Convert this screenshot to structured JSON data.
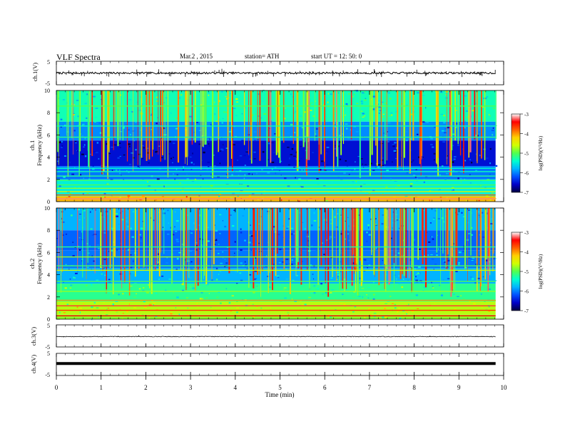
{
  "header": {
    "title": "VLF  Spectra",
    "date": "Mar.2  , 2015",
    "station": "station= ATH",
    "start": "start  UT  =    12: 50: 0"
  },
  "x_axis": {
    "label": "Time  (min)",
    "ticks": [
      "0",
      "1",
      "2",
      "3",
      "4",
      "5",
      "6",
      "7",
      "8",
      "9",
      "10"
    ],
    "range": [
      0,
      10
    ],
    "data_end": 9.82
  },
  "colormap_stops": [
    "#000040",
    "#0000c8",
    "#0050ff",
    "#00b4ff",
    "#00ffd0",
    "#50ff50",
    "#d0ff00",
    "#ffd000",
    "#ff6000",
    "#ff0000",
    "#ffffff"
  ],
  "chart_data": [
    {
      "type": "line",
      "id": "ch1",
      "ylabel": "ch.1(V)",
      "y_ticks": [
        "5",
        "-5"
      ],
      "ylim": [
        -5,
        5
      ],
      "baseline": 0,
      "noise_amplitude": 0.4,
      "spike_count": 60,
      "spike_amplitude": 1.8,
      "trace_width": 1.0
    },
    {
      "type": "heatmap",
      "id": "ch1-spectrogram",
      "ylabel_lines": [
        "ch.1",
        "Frequency  (kHz)"
      ],
      "y_ticks": [
        "0",
        "2",
        "4",
        "6",
        "8",
        "10"
      ],
      "ylim": [
        0,
        10
      ],
      "colorbar_label": "log(PSD)(V²/Hz)",
      "colorbar_ticks": [
        "-3",
        "-4",
        "-5",
        "-6",
        "-7"
      ],
      "colorbar_range": [
        -7,
        -3
      ],
      "stripe_count": 150,
      "seed": 11
    },
    {
      "type": "heatmap",
      "id": "ch2-spectrogram",
      "ylabel_lines": [
        "ch.2",
        "Frequency  (kHz)"
      ],
      "y_ticks": [
        "0",
        "2",
        "4",
        "6",
        "8",
        "10"
      ],
      "ylim": [
        0,
        10
      ],
      "colorbar_label": "log(PSD)(V²/Hz)",
      "colorbar_ticks": [
        "-3",
        "-4",
        "-5",
        "-6",
        "-7"
      ],
      "colorbar_range": [
        -7,
        -3
      ],
      "stripe_count": 170,
      "seed": 29
    },
    {
      "type": "line",
      "id": "ch3",
      "ylabel": "ch.3(V)",
      "y_ticks": [
        "5",
        "-5"
      ],
      "ylim": [
        -5,
        5
      ],
      "baseline": -0.3,
      "noise_amplitude": 0.15,
      "spike_count": 4,
      "spike_amplitude": 0.6,
      "trace_width": 0.8
    },
    {
      "type": "line",
      "id": "ch4",
      "ylabel": "ch.4(V)",
      "y_ticks": [
        "5",
        "-5"
      ],
      "ylim": [
        -5,
        5
      ],
      "baseline": 0.4,
      "noise_amplitude": 0.0,
      "spike_count": 0,
      "spike_amplitude": 0.0,
      "trace_width": 4.0
    }
  ]
}
